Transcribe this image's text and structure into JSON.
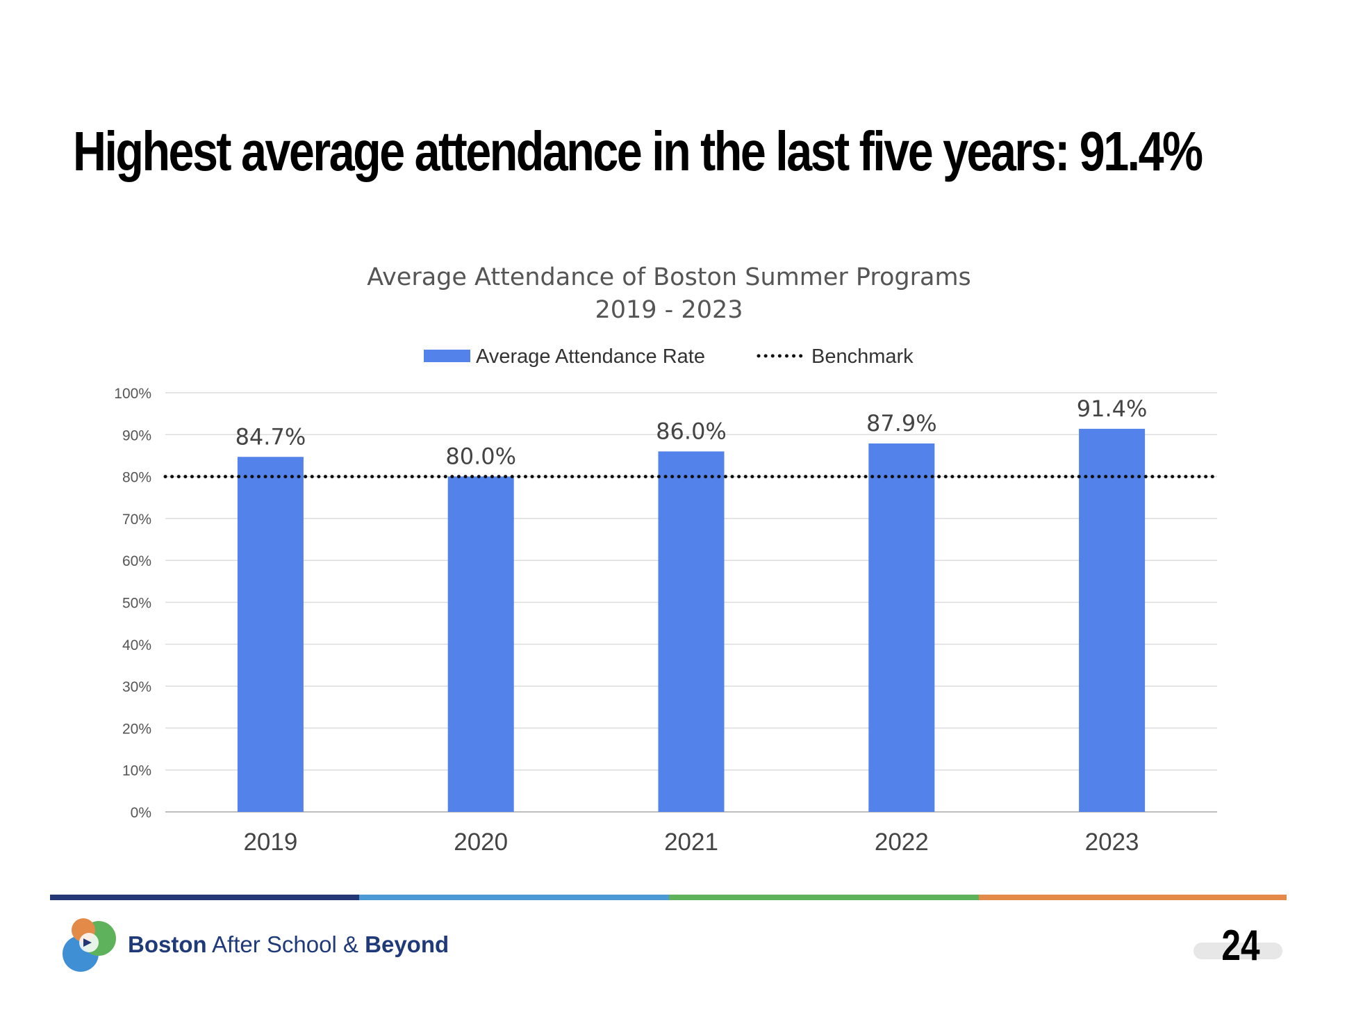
{
  "slide": {
    "title": "Highest average attendance in the last five years: 91.4%",
    "page_number": "24"
  },
  "footer": {
    "brand_part1": "Boston",
    "brand_part2": "After School &",
    "brand_part3": "Beyond",
    "stripe_colors": [
      "#233774",
      "#4b9ad6",
      "#5fb25c",
      "#e38a49"
    ]
  },
  "chart_data": {
    "type": "bar",
    "title": "Average Attendance of Boston Summer Programs",
    "subtitle": "2019 - 2023",
    "categories": [
      "2019",
      "2020",
      "2021",
      "2022",
      "2023"
    ],
    "series": [
      {
        "name": "Average Attendance Rate",
        "values": [
          84.7,
          80.0,
          86.0,
          87.9,
          91.4
        ],
        "labels": [
          "84.7%",
          "80.0%",
          "86.0%",
          "87.9%",
          "91.4%"
        ],
        "color": "#5282ea"
      }
    ],
    "benchmark": {
      "name": "Benchmark",
      "value": 80,
      "style": "dotted",
      "color": "#111111"
    },
    "y_ticks": [
      "0%",
      "10%",
      "20%",
      "30%",
      "40%",
      "50%",
      "60%",
      "70%",
      "80%",
      "90%",
      "100%"
    ],
    "ylim": [
      0,
      100
    ],
    "grid": true,
    "legend_position": "top-center"
  }
}
